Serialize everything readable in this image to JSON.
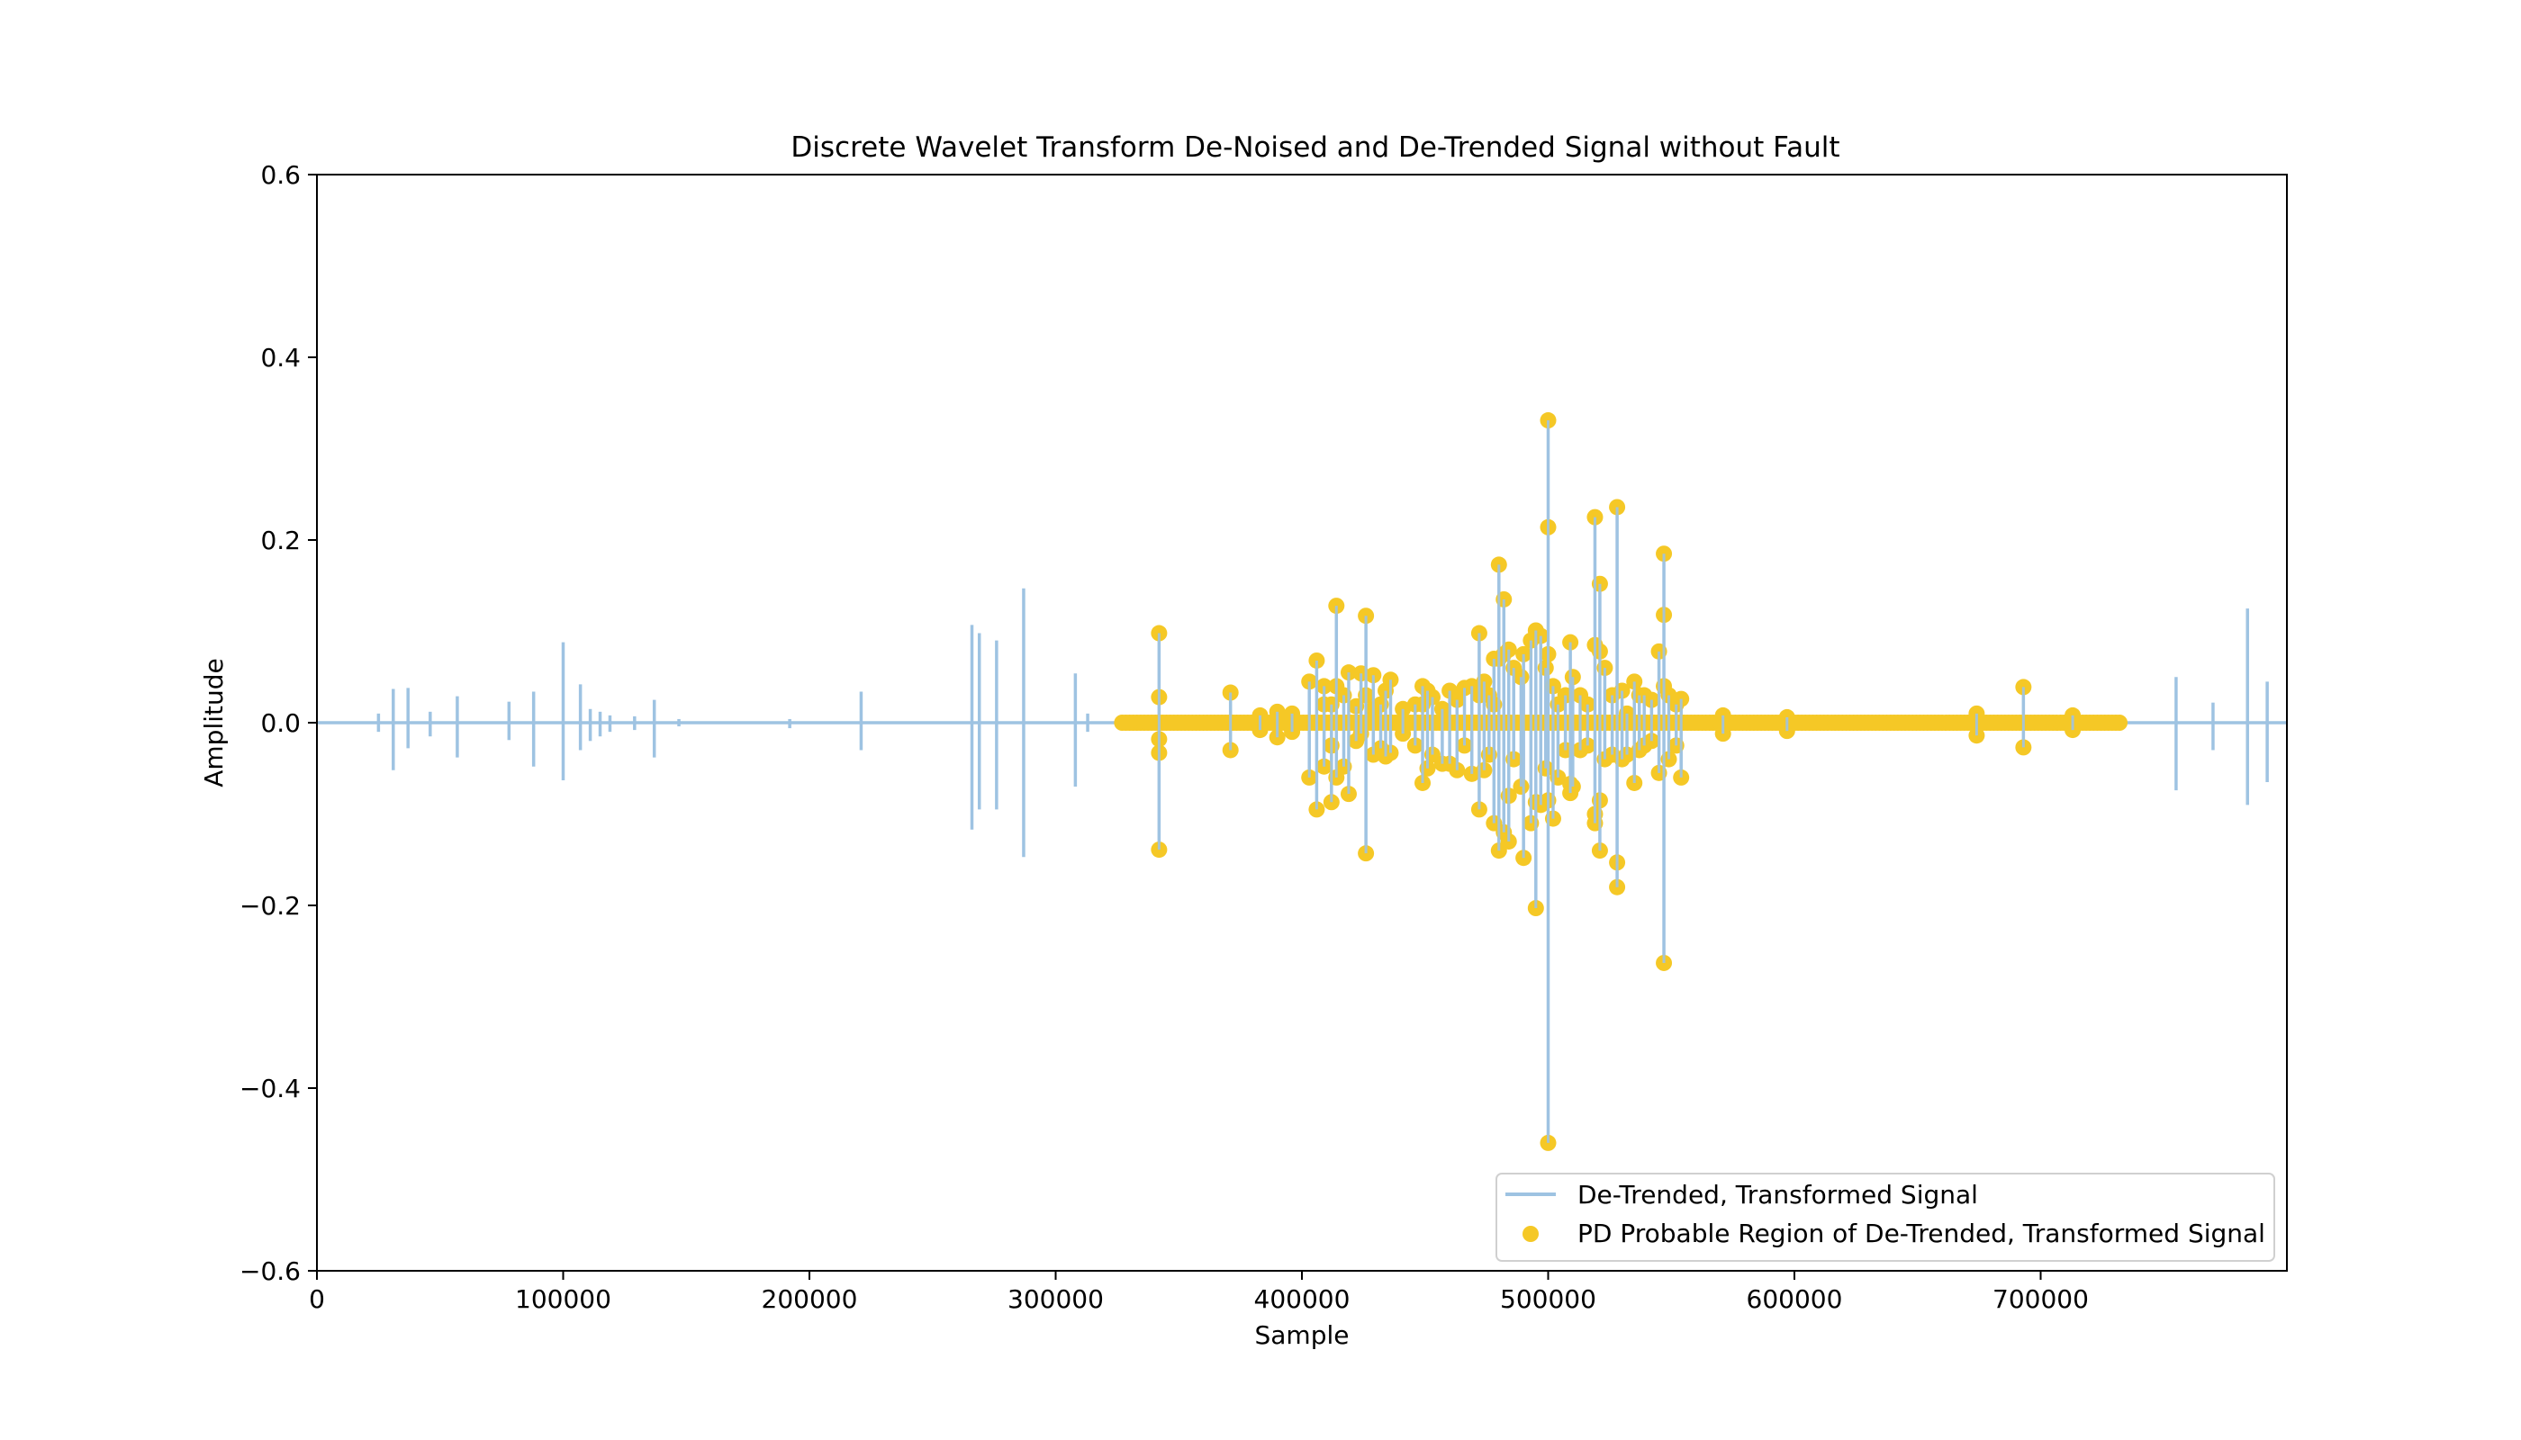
{
  "chart_data": {
    "type": "line",
    "title": "Discrete Wavelet Transform De-Noised and De-Trended Signal without Fault",
    "xlabel": "Sample",
    "ylabel": "Amplitude",
    "xlim": [
      0,
      800000
    ],
    "ylim": [
      -0.6,
      0.6
    ],
    "x_ticks": [
      0,
      100000,
      200000,
      300000,
      400000,
      500000,
      600000,
      700000
    ],
    "x_tick_labels": [
      "0",
      "100000",
      "200000",
      "300000",
      "400000",
      "500000",
      "600000",
      "700000"
    ],
    "y_ticks": [
      -0.6,
      -0.4,
      -0.2,
      0.0,
      0.2,
      0.4,
      0.6
    ],
    "y_tick_labels": [
      "−0.6",
      "−0.4",
      "−0.2",
      "0.0",
      "0.2",
      "0.4",
      "0.6"
    ],
    "legend_position": "lower-right",
    "grid": false,
    "series": [
      {
        "name": "De-Trended, Transformed Signal",
        "kind": "line",
        "color": "#9ec3e2",
        "baseline_range": [
          0,
          800000
        ],
        "spikes": [
          {
            "x": 25000,
            "max": 0.01,
            "min": -0.01
          },
          {
            "x": 31000,
            "max": 0.037,
            "min": -0.052
          },
          {
            "x": 37000,
            "max": 0.038,
            "min": -0.028
          },
          {
            "x": 46000,
            "max": 0.012,
            "min": -0.015
          },
          {
            "x": 57000,
            "max": 0.029,
            "min": -0.038
          },
          {
            "x": 78000,
            "max": 0.023,
            "min": -0.019
          },
          {
            "x": 88000,
            "max": 0.034,
            "min": -0.048
          },
          {
            "x": 100000,
            "max": 0.088,
            "min": -0.063
          },
          {
            "x": 107000,
            "max": 0.042,
            "min": -0.03
          },
          {
            "x": 111000,
            "max": 0.015,
            "min": -0.02
          },
          {
            "x": 115000,
            "max": 0.012,
            "min": -0.015
          },
          {
            "x": 119000,
            "max": 0.008,
            "min": -0.01
          },
          {
            "x": 129000,
            "max": 0.007,
            "min": -0.008
          },
          {
            "x": 137000,
            "max": 0.025,
            "min": -0.038
          },
          {
            "x": 147000,
            "max": 0.004,
            "min": -0.004
          },
          {
            "x": 192000,
            "max": 0.004,
            "min": -0.006
          },
          {
            "x": 221000,
            "max": 0.034,
            "min": -0.03
          },
          {
            "x": 266000,
            "max": 0.107,
            "min": -0.117
          },
          {
            "x": 269000,
            "max": 0.098,
            "min": -0.095
          },
          {
            "x": 276000,
            "max": 0.09,
            "min": -0.095
          },
          {
            "x": 287000,
            "max": 0.147,
            "min": -0.147
          },
          {
            "x": 308000,
            "max": 0.054,
            "min": -0.07
          },
          {
            "x": 313000,
            "max": 0.01,
            "min": -0.01
          },
          {
            "x": 755000,
            "max": 0.05,
            "min": -0.074
          },
          {
            "x": 770000,
            "max": 0.022,
            "min": -0.03
          },
          {
            "x": 784000,
            "max": 0.125,
            "min": -0.09
          },
          {
            "x": 792000,
            "max": 0.045,
            "min": -0.065
          }
        ]
      },
      {
        "name": "PD Probable Region of De-Trended, Transformed Signal",
        "kind": "scatter",
        "color": "#f5c826",
        "baseline_range": [
          327000,
          732000
        ],
        "spikes": [
          {
            "x": 342000,
            "max": 0.098,
            "min": -0.139,
            "points": [
              0.098,
              0.028,
              -0.018,
              -0.033,
              -0.139
            ]
          },
          {
            "x": 371000,
            "max": 0.033,
            "min": -0.03,
            "points": [
              0.033,
              -0.03
            ]
          },
          {
            "x": 383000,
            "max": 0.008,
            "min": -0.008,
            "points": [
              0.008,
              -0.008
            ]
          },
          {
            "x": 390000,
            "max": 0.012,
            "min": -0.016,
            "points": [
              0.012,
              -0.016
            ]
          },
          {
            "x": 396000,
            "max": 0.01,
            "min": -0.01,
            "points": [
              0.01,
              -0.01
            ]
          },
          {
            "x": 403000,
            "max": 0.045,
            "min": -0.06,
            "points": [
              0.045,
              -0.06
            ]
          },
          {
            "x": 406000,
            "max": 0.068,
            "min": -0.095,
            "points": [
              0.068,
              -0.095
            ]
          },
          {
            "x": 409000,
            "max": 0.04,
            "min": -0.048,
            "points": [
              0.04,
              0.02,
              -0.048
            ]
          },
          {
            "x": 412000,
            "max": 0.02,
            "min": -0.087,
            "points": [
              0.02,
              -0.025,
              -0.087
            ]
          },
          {
            "x": 414000,
            "max": 0.128,
            "min": -0.06,
            "points": [
              0.128,
              0.04,
              -0.06
            ]
          },
          {
            "x": 417000,
            "max": 0.03,
            "min": -0.048,
            "points": [
              0.03,
              -0.048
            ]
          },
          {
            "x": 419000,
            "max": 0.055,
            "min": -0.078,
            "points": [
              0.055,
              -0.078
            ]
          },
          {
            "x": 422000,
            "max": 0.018,
            "min": -0.02,
            "points": [
              0.018,
              -0.02
            ]
          },
          {
            "x": 424000,
            "max": 0.054,
            "min": -0.012,
            "points": [
              0.054,
              -0.012
            ]
          },
          {
            "x": 426000,
            "max": 0.117,
            "min": -0.143,
            "points": [
              0.117,
              0.03,
              -0.143
            ]
          },
          {
            "x": 429000,
            "max": 0.052,
            "min": -0.035,
            "points": [
              0.052,
              0.015,
              -0.035
            ]
          },
          {
            "x": 432000,
            "max": 0.02,
            "min": -0.028,
            "points": [
              0.02,
              -0.028
            ]
          },
          {
            "x": 434000,
            "max": 0.035,
            "min": -0.037,
            "points": [
              0.035,
              -0.037
            ]
          },
          {
            "x": 436000,
            "max": 0.047,
            "min": -0.033,
            "points": [
              0.047,
              -0.033
            ]
          },
          {
            "x": 441000,
            "max": 0.015,
            "min": -0.012,
            "points": [
              0.015,
              -0.012
            ]
          },
          {
            "x": 446000,
            "max": 0.02,
            "min": -0.025,
            "points": [
              0.02,
              -0.025
            ]
          },
          {
            "x": 449000,
            "max": 0.04,
            "min": -0.066,
            "points": [
              0.04,
              0.02,
              -0.066
            ]
          },
          {
            "x": 451000,
            "max": 0.035,
            "min": -0.05,
            "points": [
              0.035,
              -0.05
            ]
          },
          {
            "x": 453000,
            "max": 0.028,
            "min": -0.035,
            "points": [
              0.028,
              -0.035
            ]
          },
          {
            "x": 457000,
            "max": 0.015,
            "min": -0.045,
            "points": [
              0.015,
              -0.045
            ]
          },
          {
            "x": 460000,
            "max": 0.035,
            "min": -0.045,
            "points": [
              0.035,
              -0.045
            ]
          },
          {
            "x": 463000,
            "max": 0.025,
            "min": -0.052,
            "points": [
              0.025,
              -0.052
            ]
          },
          {
            "x": 466000,
            "max": 0.038,
            "min": -0.025,
            "points": [
              0.038,
              -0.025
            ]
          },
          {
            "x": 469000,
            "max": 0.04,
            "min": -0.056,
            "points": [
              0.04,
              -0.056
            ]
          },
          {
            "x": 472000,
            "max": 0.098,
            "min": -0.095,
            "points": [
              0.098,
              0.03,
              -0.095
            ]
          },
          {
            "x": 474000,
            "max": 0.045,
            "min": -0.052,
            "points": [
              0.045,
              -0.052
            ]
          },
          {
            "x": 476000,
            "max": 0.03,
            "min": -0.035,
            "points": [
              0.03,
              -0.035
            ]
          },
          {
            "x": 478000,
            "max": 0.07,
            "min": -0.11,
            "points": [
              0.07,
              0.02,
              -0.11
            ]
          },
          {
            "x": 480000,
            "max": 0.173,
            "min": -0.14,
            "points": [
              0.173,
              0.07,
              -0.14
            ]
          },
          {
            "x": 482000,
            "max": 0.135,
            "min": -0.12,
            "points": [
              0.135,
              0.075,
              -0.12
            ]
          },
          {
            "x": 484000,
            "max": 0.08,
            "min": -0.13,
            "points": [
              0.08,
              -0.08,
              -0.13
            ]
          },
          {
            "x": 486000,
            "max": 0.06,
            "min": -0.04,
            "points": [
              0.06,
              -0.04
            ]
          },
          {
            "x": 489000,
            "max": 0.05,
            "min": -0.07,
            "points": [
              0.05,
              -0.07
            ]
          },
          {
            "x": 490000,
            "max": 0.075,
            "min": -0.148,
            "points": [
              0.075,
              -0.148
            ]
          },
          {
            "x": 493000,
            "max": 0.09,
            "min": -0.11,
            "points": [
              0.09,
              -0.11
            ]
          },
          {
            "x": 495000,
            "max": 0.101,
            "min": -0.203,
            "points": [
              0.101,
              -0.087,
              -0.203
            ]
          },
          {
            "x": 497000,
            "max": 0.095,
            "min": -0.09,
            "points": [
              0.095,
              -0.09
            ]
          },
          {
            "x": 499000,
            "max": 0.06,
            "min": -0.05,
            "points": [
              0.06,
              -0.05
            ]
          },
          {
            "x": 500000,
            "max": 0.331,
            "min": -0.46,
            "points": [
              0.331,
              0.214,
              0.075,
              -0.085,
              -0.46
            ]
          },
          {
            "x": 502000,
            "max": 0.04,
            "min": -0.105,
            "points": [
              0.04,
              -0.105
            ]
          },
          {
            "x": 504000,
            "max": 0.02,
            "min": -0.06,
            "points": [
              0.02,
              -0.06
            ]
          },
          {
            "x": 507000,
            "max": 0.03,
            "min": -0.03,
            "points": [
              0.03,
              -0.03
            ]
          },
          {
            "x": 509000,
            "max": 0.088,
            "min": -0.077,
            "points": [
              0.088,
              -0.067,
              -0.077
            ]
          },
          {
            "x": 510000,
            "max": 0.05,
            "min": -0.07,
            "points": [
              0.05,
              -0.07
            ]
          },
          {
            "x": 513000,
            "max": 0.03,
            "min": -0.03,
            "points": [
              0.03,
              -0.03
            ]
          },
          {
            "x": 516000,
            "max": 0.02,
            "min": -0.025,
            "points": [
              0.02,
              -0.025
            ]
          },
          {
            "x": 519000,
            "max": 0.225,
            "min": -0.11,
            "points": [
              0.225,
              0.085,
              -0.1,
              -0.11
            ]
          },
          {
            "x": 521000,
            "max": 0.152,
            "min": -0.14,
            "points": [
              0.152,
              0.078,
              -0.085,
              -0.14
            ]
          },
          {
            "x": 523000,
            "max": 0.06,
            "min": -0.04,
            "points": [
              0.06,
              -0.04
            ]
          },
          {
            "x": 526000,
            "max": 0.03,
            "min": -0.035,
            "points": [
              0.03,
              -0.035
            ]
          },
          {
            "x": 528000,
            "max": 0.236,
            "min": -0.18,
            "points": [
              0.236,
              -0.153,
              -0.18
            ]
          },
          {
            "x": 530000,
            "max": 0.035,
            "min": -0.04,
            "points": [
              0.035,
              -0.04
            ]
          },
          {
            "x": 532000,
            "max": 0.01,
            "min": -0.035,
            "points": [
              0.01,
              -0.035
            ]
          },
          {
            "x": 535000,
            "max": 0.045,
            "min": -0.066,
            "points": [
              0.045,
              -0.066
            ]
          },
          {
            "x": 537000,
            "max": 0.03,
            "min": -0.03,
            "points": [
              0.03,
              -0.03
            ]
          },
          {
            "x": 539000,
            "max": 0.03,
            "min": -0.025,
            "points": [
              0.03,
              -0.025
            ]
          },
          {
            "x": 542000,
            "max": 0.025,
            "min": -0.02,
            "points": [
              0.025,
              -0.02
            ]
          },
          {
            "x": 545000,
            "max": 0.078,
            "min": -0.055,
            "points": [
              0.078,
              -0.055
            ]
          },
          {
            "x": 547000,
            "max": 0.185,
            "min": -0.263,
            "points": [
              0.185,
              0.118,
              0.04,
              -0.263
            ]
          },
          {
            "x": 549000,
            "max": 0.03,
            "min": -0.04,
            "points": [
              0.03,
              -0.04
            ]
          },
          {
            "x": 552000,
            "max": 0.02,
            "min": -0.025,
            "points": [
              0.02,
              -0.025
            ]
          },
          {
            "x": 554000,
            "max": 0.026,
            "min": -0.06,
            "points": [
              0.026,
              -0.06
            ]
          },
          {
            "x": 571000,
            "max": 0.008,
            "min": -0.012,
            "points": [
              0.008,
              -0.012
            ]
          },
          {
            "x": 597000,
            "max": 0.006,
            "min": -0.009,
            "points": [
              0.006,
              -0.009
            ]
          },
          {
            "x": 674000,
            "max": 0.01,
            "min": -0.014,
            "points": [
              0.01,
              -0.014
            ]
          },
          {
            "x": 693000,
            "max": 0.039,
            "min": -0.027,
            "points": [
              0.039,
              -0.027
            ]
          },
          {
            "x": 713000,
            "max": 0.008,
            "min": -0.008,
            "points": [
              0.008,
              -0.008
            ]
          }
        ]
      }
    ]
  }
}
